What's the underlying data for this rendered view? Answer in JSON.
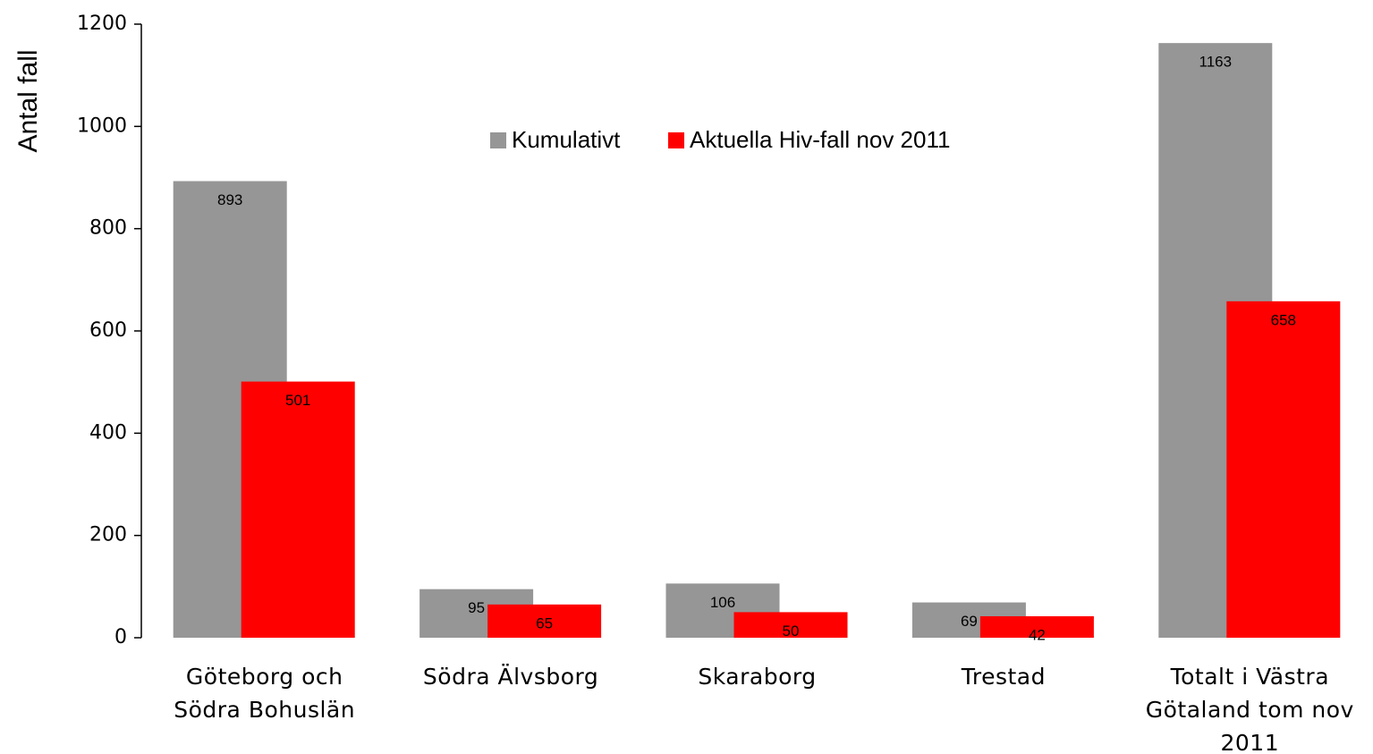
{
  "chart_data": {
    "type": "bar",
    "y_label": "Antal fall",
    "categories": [
      "Göteborg och Södra Bohuslän",
      "Södra Älvsborg",
      "Skaraborg",
      "Trestad",
      "Totalt i Västra Götaland tom nov 2011"
    ],
    "series": [
      {
        "name": "Kumulativt",
        "color": "#969696",
        "values": [
          893,
          95,
          106,
          69,
          1163
        ]
      },
      {
        "name": "Aktuella Hiv-fall nov 2011",
        "color": "#ff0000",
        "values": [
          501,
          65,
          50,
          42,
          658
        ]
      }
    ],
    "ylim": [
      0,
      1200
    ],
    "yticks": [
      0,
      200,
      400,
      600,
      800,
      1000,
      1200
    ],
    "grid": false
  }
}
